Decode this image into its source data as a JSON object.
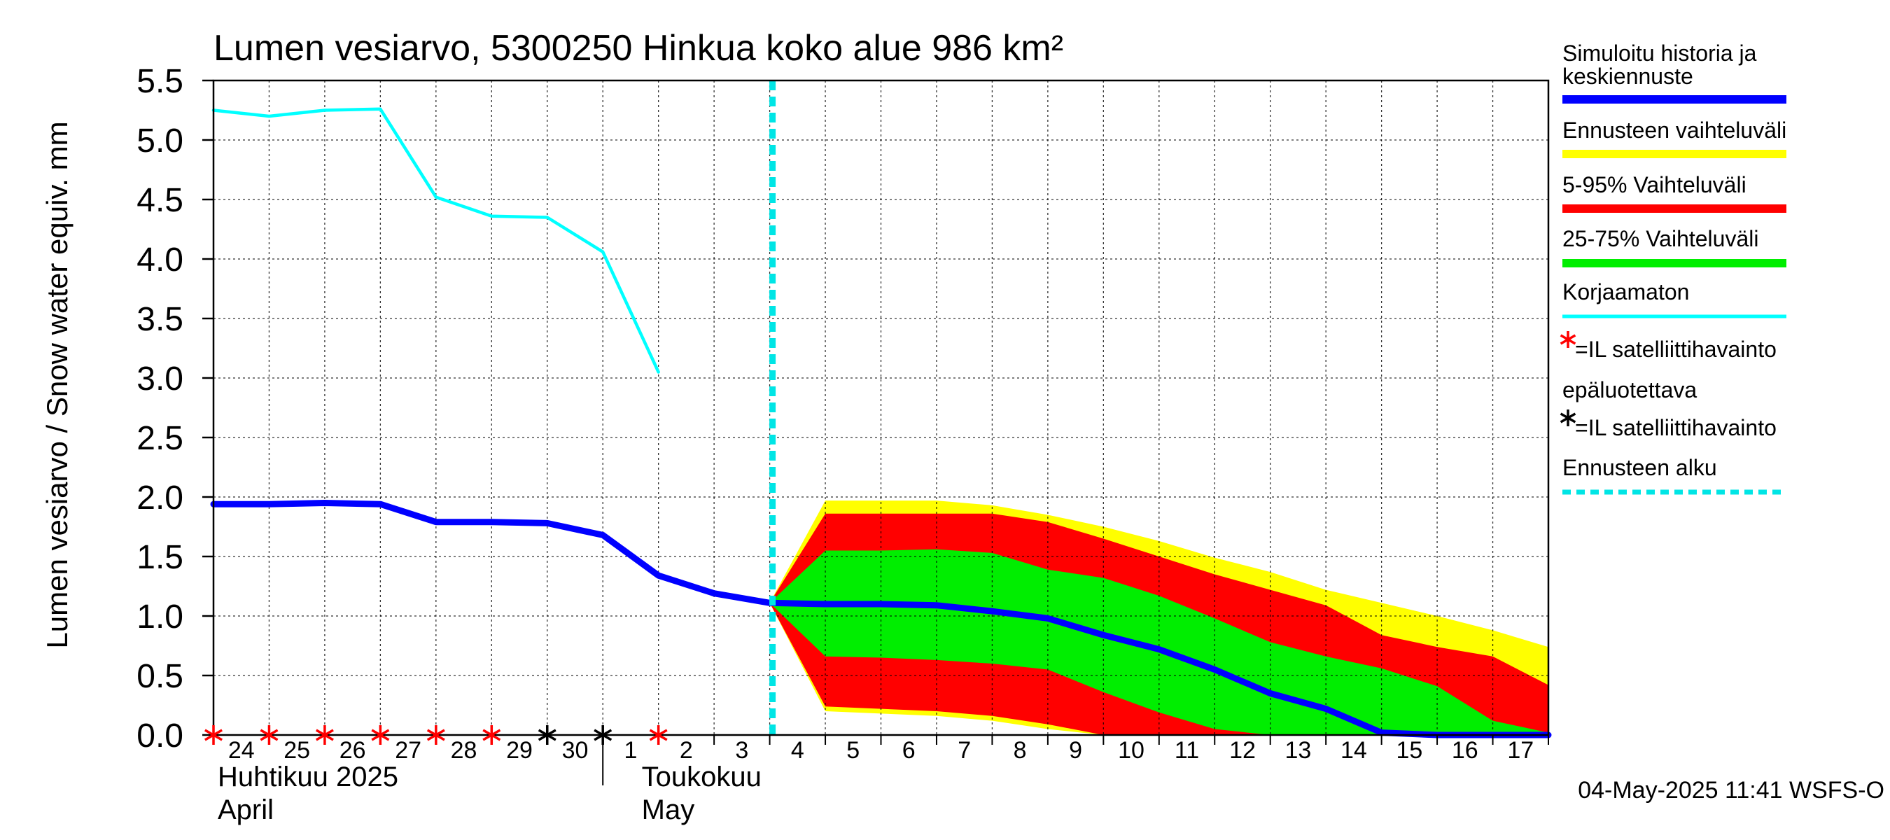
{
  "title": "Lumen vesiarvo, 5300250 Hinkua koko alue 986 km²",
  "ylabel": "Lumen vesiarvo / Snow water equiv.   mm",
  "footer": "04-May-2025 11:41 WSFS-O",
  "month_labels": [
    {
      "line1": "Huhtikuu  2025",
      "line2": "April"
    },
    {
      "line1": "Toukokuu",
      "line2": "May"
    }
  ],
  "legend": [
    {
      "label": "Simuloitu historia ja keskiennuste",
      "color": "#0000ff",
      "style": "solid"
    },
    {
      "label": "Ennusteen vaihteluväli",
      "color": "#ffff00",
      "style": "solid"
    },
    {
      "label": "5-95% Vaihteluväli",
      "color": "#ff0000",
      "style": "solid"
    },
    {
      "label": "25-75% Vaihteluväli",
      "color": "#00ee00",
      "style": "solid"
    },
    {
      "label": "Korjaamaton",
      "color": "#00ffff",
      "style": "solid"
    },
    {
      "label": "=IL satelliittihavainto",
      "color": "#ff0000",
      "style": "star"
    },
    {
      "label": "epäluotettava",
      "color": "",
      "style": "none"
    },
    {
      "label": "=IL satelliittihavainto",
      "color": "#000000",
      "style": "star"
    },
    {
      "label": "Ennusteen alku",
      "color": "#00e5e5",
      "style": "dashed"
    }
  ],
  "chart_data": {
    "type": "area",
    "title": "Lumen vesiarvo, 5300250 Hinkua koko alue 986 km²",
    "ylabel": "Lumen vesiarvo / Snow water equiv.   mm",
    "ylim": [
      0,
      5.5
    ],
    "yticks": [
      0.0,
      0.5,
      1.0,
      1.5,
      2.0,
      2.5,
      3.0,
      3.5,
      4.0,
      4.5,
      5.0,
      5.5
    ],
    "xlim": [
      "2025-04-24",
      "2025-05-18"
    ],
    "xtick_labels": [
      "24",
      "25",
      "26",
      "27",
      "28",
      "29",
      "30",
      "1",
      "2",
      "3",
      "4",
      "5",
      "6",
      "7",
      "8",
      "9",
      "10",
      "11",
      "12",
      "13",
      "14",
      "15",
      "16",
      "17"
    ],
    "grid": true,
    "forecast_start": "2025-05-04",
    "series": [
      {
        "name": "Simuloitu historia ja keskiennuste",
        "color": "#0000ff",
        "x": [
          "2025-04-24",
          "2025-04-25",
          "2025-04-26",
          "2025-04-27",
          "2025-04-28",
          "2025-04-29",
          "2025-04-30",
          "2025-05-01",
          "2025-05-02",
          "2025-05-03",
          "2025-05-04",
          "2025-05-05",
          "2025-05-06",
          "2025-05-07",
          "2025-05-08",
          "2025-05-09",
          "2025-05-10",
          "2025-05-11",
          "2025-05-12",
          "2025-05-13",
          "2025-05-14",
          "2025-05-15",
          "2025-05-16",
          "2025-05-17",
          "2025-05-18"
        ],
        "y": [
          1.94,
          1.94,
          1.95,
          1.94,
          1.79,
          1.79,
          1.78,
          1.68,
          1.34,
          1.19,
          1.11,
          1.1,
          1.1,
          1.09,
          1.04,
          0.98,
          0.84,
          0.72,
          0.55,
          0.35,
          0.22,
          0.02,
          0.0,
          0.0,
          0.0
        ]
      },
      {
        "name": "Korjaamaton",
        "color": "#00ffff",
        "x": [
          "2025-04-24",
          "2025-04-25",
          "2025-04-26",
          "2025-04-27",
          "2025-04-28",
          "2025-04-29",
          "2025-04-30",
          "2025-05-01",
          "2025-05-02"
        ],
        "y": [
          5.25,
          5.2,
          5.25,
          5.26,
          4.52,
          4.36,
          4.35,
          4.06,
          3.05
        ]
      }
    ],
    "bands": {
      "x": [
        "2025-05-04",
        "2025-05-05",
        "2025-05-06",
        "2025-05-07",
        "2025-05-08",
        "2025-05-09",
        "2025-05-10",
        "2025-05-11",
        "2025-05-12",
        "2025-05-13",
        "2025-05-14",
        "2025-05-15",
        "2025-05-16",
        "2025-05-17",
        "2025-05-18"
      ],
      "range_upper": [
        1.11,
        1.97,
        1.97,
        1.97,
        1.93,
        1.85,
        1.75,
        1.63,
        1.49,
        1.37,
        1.22,
        1.11,
        1.0,
        0.88,
        0.74
      ],
      "range_lower": [
        1.11,
        0.2,
        0.18,
        0.16,
        0.12,
        0.05,
        0.0,
        0.0,
        0.0,
        0.0,
        0.0,
        0.0,
        0.0,
        0.0,
        0.0
      ],
      "p95": [
        1.11,
        1.86,
        1.86,
        1.86,
        1.86,
        1.79,
        1.65,
        1.5,
        1.35,
        1.22,
        1.09,
        0.84,
        0.74,
        0.66,
        0.42
      ],
      "p05": [
        1.11,
        0.24,
        0.22,
        0.2,
        0.16,
        0.09,
        0.0,
        0.0,
        0.0,
        0.0,
        0.0,
        0.0,
        0.0,
        0.0,
        0.0
      ],
      "p75": [
        1.11,
        1.55,
        1.55,
        1.56,
        1.53,
        1.39,
        1.32,
        1.17,
        0.98,
        0.78,
        0.66,
        0.56,
        0.41,
        0.12,
        0.02
      ],
      "p25": [
        1.11,
        0.66,
        0.65,
        0.63,
        0.6,
        0.55,
        0.36,
        0.19,
        0.05,
        0.0,
        0.0,
        0.0,
        0.0,
        0.0,
        0.0
      ]
    },
    "observations": [
      {
        "x": "2025-04-24",
        "type": "IL",
        "color": "#ff0000"
      },
      {
        "x": "2025-04-25",
        "type": "IL",
        "color": "#ff0000"
      },
      {
        "x": "2025-04-26",
        "type": "IL",
        "color": "#ff0000"
      },
      {
        "x": "2025-04-27",
        "type": "IL",
        "color": "#ff0000"
      },
      {
        "x": "2025-04-28",
        "type": "IL",
        "color": "#ff0000"
      },
      {
        "x": "2025-04-29",
        "type": "IL",
        "color": "#ff0000"
      },
      {
        "x": "2025-04-30",
        "type": "IL-epäluotettava",
        "color": "#000000"
      },
      {
        "x": "2025-05-01",
        "type": "IL-epäluotettava",
        "color": "#000000"
      },
      {
        "x": "2025-05-02",
        "type": "IL",
        "color": "#ff0000"
      }
    ],
    "colors": {
      "range": "#ffff00",
      "p5_95": "#ff0000",
      "p25_75": "#00ee00",
      "forecast_start": "#00e5e5"
    }
  }
}
